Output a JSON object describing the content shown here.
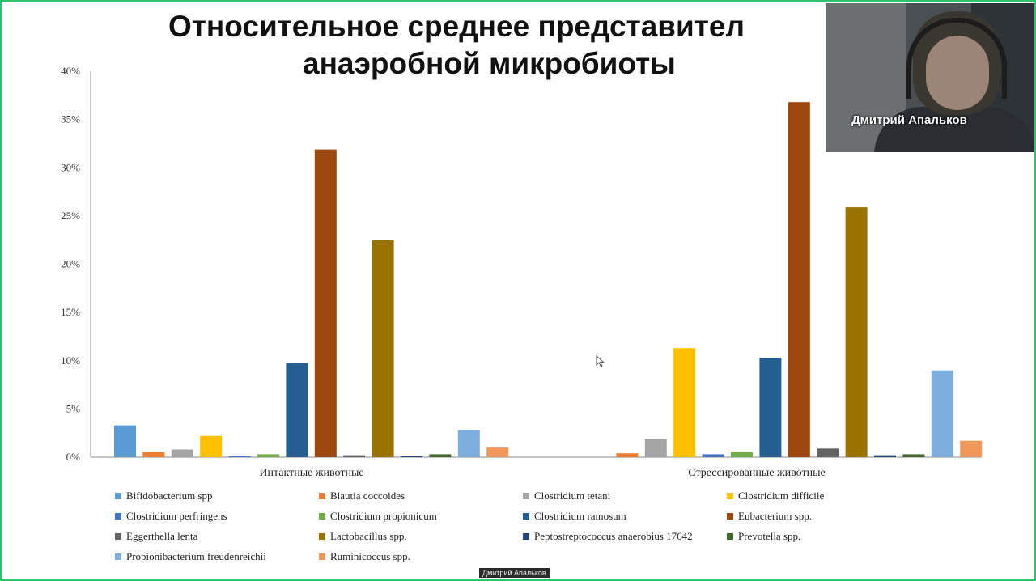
{
  "slide": {
    "title_line1": "Относительное среднее представител",
    "title_line2": "анаэробной микробиоты"
  },
  "video": {
    "participant_name": "Дмитрий Апальков"
  },
  "bottom_label": "Дмитрий Апальков",
  "chart_data": {
    "type": "bar",
    "categories": [
      "Интактные животные",
      "Стрессированные животные"
    ],
    "yticks": [
      "0%",
      "5%",
      "10%",
      "15%",
      "20%",
      "25%",
      "30%",
      "35%",
      "40%"
    ],
    "ylim": [
      0,
      40
    ],
    "unit": "%",
    "grid": false,
    "legend_position": "bottom",
    "series": [
      {
        "name": "Bifidobacterium spp",
        "color": "#5b9bd5",
        "values": [
          3.3,
          0.0
        ]
      },
      {
        "name": "Blautia coccoides",
        "color": "#ed7d31",
        "values": [
          0.5,
          0.4
        ]
      },
      {
        "name": "Clostridium tetani",
        "color": "#a5a5a5",
        "values": [
          0.8,
          1.9
        ]
      },
      {
        "name": "Clostridium difficile",
        "color": "#ffc000",
        "values": [
          2.2,
          11.3
        ]
      },
      {
        "name": "Clostridium perfringens",
        "color": "#4472c4",
        "values": [
          0.1,
          0.3
        ]
      },
      {
        "name": "Clostridium propionicum",
        "color": "#70ad47",
        "values": [
          0.3,
          0.5
        ]
      },
      {
        "name": "Clostridium ramosum",
        "color": "#255e91",
        "values": [
          9.8,
          10.3
        ]
      },
      {
        "name": "Eubacterium spp.",
        "color": "#9e480e",
        "values": [
          31.9,
          36.8
        ]
      },
      {
        "name": "Eggerthella lenta",
        "color": "#636363",
        "values": [
          0.2,
          0.9
        ]
      },
      {
        "name": "Lactobacillus spp.",
        "color": "#997300",
        "values": [
          22.5,
          25.9
        ]
      },
      {
        "name": "Peptostreptococcus anaerobius 17642",
        "color": "#264478",
        "values": [
          0.1,
          0.2
        ]
      },
      {
        "name": "Prevotella spp.",
        "color": "#43682b",
        "values": [
          0.3,
          0.3
        ]
      },
      {
        "name": "Propionibacterium freudenreichii",
        "color": "#7cafdd",
        "values": [
          2.8,
          9.0
        ]
      },
      {
        "name": "Ruminicoccus spp.",
        "color": "#f1975a",
        "values": [
          1.0,
          1.7
        ]
      }
    ]
  }
}
